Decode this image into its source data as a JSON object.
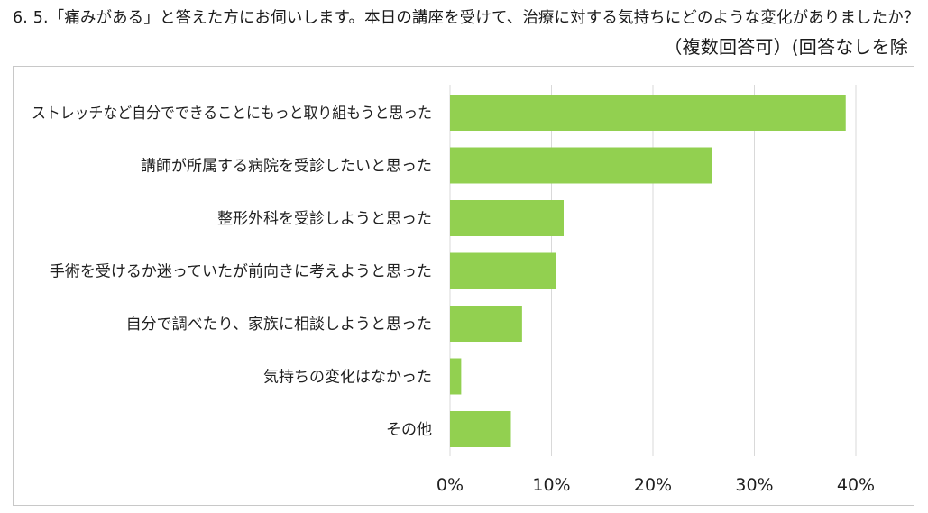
{
  "header": {
    "title_line1": "6. 5.「痛みがある」と答えた方にお伺いします。本日の講座を受けて、治療に対する気持ちにどのような変化がありましたか？",
    "title_line2": "（複数回答可）(回答なしを除"
  },
  "colors": {
    "bar": "#92d050",
    "gridline": "#d9d9d9",
    "frame": "#c8c8c8"
  },
  "chart_data": {
    "type": "bar",
    "orientation": "horizontal",
    "categories": [
      "ストレッチなど自分でできることにもっと取り組もうと思った",
      "講師が所属する病院を受診したいと思った",
      "整形外科を受診しようと思った",
      "手術を受けるか迷っていたが前向きに考えようと思った",
      "自分で調べたり、家族に相談しようと思った",
      "気持ちの変化はなかった",
      "その他"
    ],
    "values": [
      39.0,
      25.8,
      11.2,
      10.4,
      7.1,
      1.1,
      6.0
    ],
    "unit": "%",
    "xlim": [
      0,
      40
    ],
    "xticks": [
      0,
      10,
      20,
      30,
      40
    ],
    "xtick_labels": [
      "0%",
      "10%",
      "20%",
      "30%",
      "40%"
    ],
    "grid": true,
    "legend": "none",
    "xlabel": "",
    "ylabel": ""
  }
}
